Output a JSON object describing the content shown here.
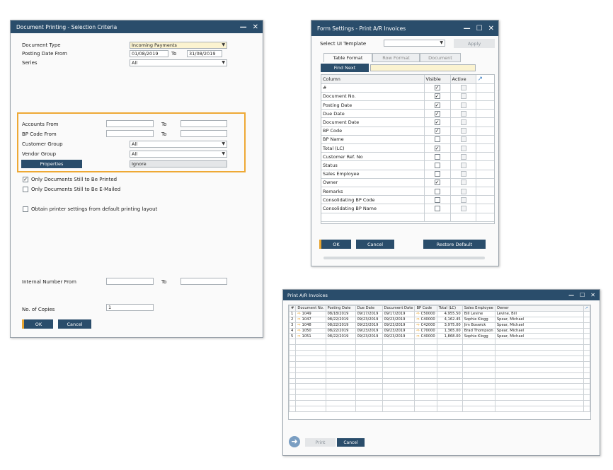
{
  "doc_printing": {
    "title": "Document Printing - Selection Criteria",
    "document_type_label": "Document Type",
    "document_type_value": "Incoming Payments",
    "posting_date_from_label": "Posting Date From",
    "posting_date_from": "01/08/2019",
    "to_label": "To",
    "posting_date_to": "31/08/2019",
    "series_label": "Series",
    "series_value": "All",
    "accounts_from_label": "Accounts From",
    "bp_code_from_label": "BP Code From",
    "customer_group_label": "Customer Group",
    "customer_group_value": "All",
    "vendor_group_label": "Vendor Group",
    "vendor_group_value": "All",
    "properties_button": "Properties",
    "properties_value": "Ignore",
    "only_printed_label": "Only Documents Still to Be Printed",
    "only_emailed_label": "Only Documents Still to Be E-Mailed",
    "obtain_printer_label": "Obtain printer settings from default printing layout",
    "internal_number_label": "Internal Number From",
    "copies_label": "No. of Copies",
    "copies_value": "1",
    "ok_button": "OK",
    "cancel_button": "Cancel"
  },
  "form_settings": {
    "title": "Form Settings - Print A/R Invoices",
    "select_ui_template_label": "Select UI Template",
    "apply_button": "Apply",
    "tabs": [
      "Table Format",
      "Row Format",
      "Document"
    ],
    "find_next_button": "Find Next",
    "col_column": "Column",
    "col_visible": "Visible",
    "col_active": "Active",
    "rows": [
      {
        "name": "#",
        "visible": true
      },
      {
        "name": "Document No.",
        "visible": true
      },
      {
        "name": "Posting Date",
        "visible": true
      },
      {
        "name": "Due Date",
        "visible": true
      },
      {
        "name": "Document Date",
        "visible": true
      },
      {
        "name": "BP Code",
        "visible": true
      },
      {
        "name": "BP Name",
        "visible": false
      },
      {
        "name": "Total (LC)",
        "visible": true
      },
      {
        "name": "Customer Ref. No",
        "visible": false
      },
      {
        "name": "Status",
        "visible": false
      },
      {
        "name": "Sales Employee",
        "visible": false
      },
      {
        "name": "Owner",
        "visible": true
      },
      {
        "name": "Remarks",
        "visible": false
      },
      {
        "name": "Consolidating BP Code",
        "visible": false
      },
      {
        "name": "Consolidating BP Name",
        "visible": false
      }
    ],
    "ok_button": "OK",
    "cancel_button": "Cancel",
    "restore_default_button": "Restore Default"
  },
  "print_invoices": {
    "title": "Print A/R Invoices",
    "columns": [
      "#",
      "Document No.",
      "Posting Date",
      "Due Date",
      "Document Date",
      "BP Code",
      "Total (LC)",
      "Sales Employee",
      "Owner"
    ],
    "rows": [
      {
        "n": "1",
        "doc": "1049",
        "post": "08/18/2019",
        "due": "09/17/2019",
        "docdate": "09/17/2019",
        "bp": "C50000",
        "total": "4,955.50",
        "emp": "Bill Levine",
        "owner": "Levine, Bill"
      },
      {
        "n": "2",
        "doc": "1047",
        "post": "08/22/2019",
        "due": "09/23/2019",
        "docdate": "09/23/2019",
        "bp": "C40000",
        "total": "4,162.45",
        "emp": "Sophie Klogg",
        "owner": "Spear, Michael"
      },
      {
        "n": "3",
        "doc": "1048",
        "post": "08/22/2019",
        "due": "09/23/2019",
        "docdate": "09/23/2019",
        "bp": "C42000",
        "total": "3,975.00",
        "emp": "Jim Boswick",
        "owner": "Spear, Michael"
      },
      {
        "n": "4",
        "doc": "1050",
        "post": "08/22/2019",
        "due": "09/23/2019",
        "docdate": "09/23/2019",
        "bp": "C70000",
        "total": "1,365.00",
        "emp": "Brad Thompson",
        "owner": "Spear, Michael"
      },
      {
        "n": "5",
        "doc": "1051",
        "post": "08/22/2019",
        "due": "09/23/2019",
        "docdate": "09/23/2019",
        "bp": "C40000",
        "total": "1,868.00",
        "emp": "Sophie Klogg",
        "owner": "Spear, Michael"
      }
    ],
    "print_button": "Print",
    "cancel_button": "Cancel"
  },
  "icons": {
    "minimize": "minimize-icon",
    "maximize": "maximize-icon",
    "close": "close-icon",
    "back": "back-arrow-icon",
    "expand": "expand-icon"
  },
  "colors": {
    "titlebar": "#2a4d6b",
    "accent": "#e8a531",
    "input_highlight": "#fbf3d0"
  }
}
